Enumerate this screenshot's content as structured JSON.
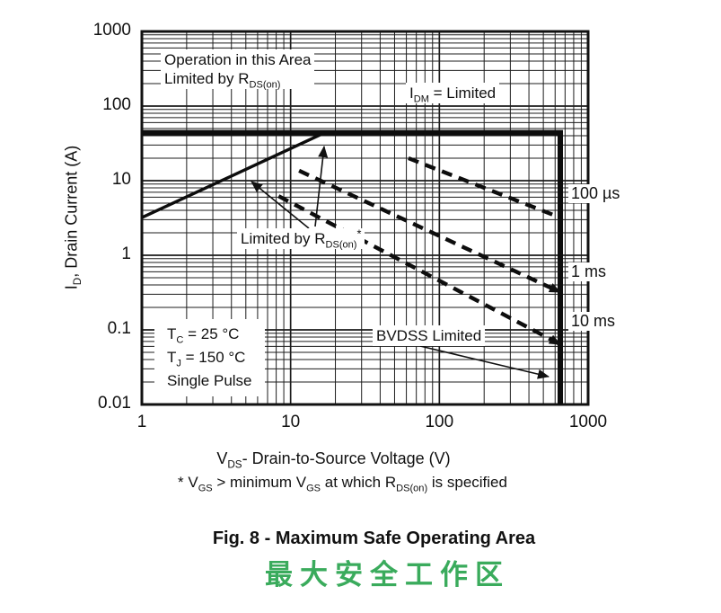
{
  "figure": {
    "caption_en": "Fig. 8 - Maximum Safe Operating Area",
    "caption_zh": "最大安全工作区",
    "caption_zh_color": "#3AAB5C",
    "footnote": {
      "pre": "* V",
      "sub1": "GS",
      "mid1": " > minimum V",
      "sub2": "GS",
      "mid2": " at which R",
      "sub3": "DS(on)",
      "end": " is specified"
    }
  },
  "chart_data": {
    "type": "line",
    "xscale": "log",
    "yscale": "log",
    "grid": true,
    "xlim": [
      1,
      1000
    ],
    "ylim": [
      0.01,
      1000
    ],
    "x_ticks": [
      "1",
      "10",
      "100",
      "1000"
    ],
    "y_ticks": [
      "1000",
      "100",
      "10",
      "1",
      "0.1",
      "0.01"
    ],
    "xlabel": {
      "pre": "V",
      "sub": "DS",
      "post": "- Drain-to-Source Voltage (V)"
    },
    "ylabel": {
      "pre": "I",
      "sub": "D",
      "post": ", Drain Current (A)"
    },
    "series": [
      {
        "name": "idm-limit",
        "style": "solid-thick",
        "points": [
          [
            1,
            44
          ],
          [
            650,
            44
          ],
          [
            650,
            0.01
          ]
        ]
      },
      {
        "name": "rdson-limit",
        "style": "solid",
        "points": [
          [
            1,
            3.2
          ],
          [
            17,
            44
          ]
        ]
      },
      {
        "name": "t-100us",
        "style": "dashed",
        "label": "100 µs",
        "arrow": false,
        "points": [
          [
            62,
            20
          ],
          [
            650,
            3.2
          ]
        ]
      },
      {
        "name": "t-1ms",
        "style": "dashed",
        "label": "1 ms",
        "arrow": true,
        "points": [
          [
            11.4,
            13.6
          ],
          [
            650,
            0.32
          ]
        ]
      },
      {
        "name": "t-10ms",
        "style": "dashed",
        "label": "10 ms",
        "arrow": true,
        "points": [
          [
            8.3,
            6.2
          ],
          [
            650,
            0.064
          ]
        ]
      }
    ],
    "annotations": {
      "op_area": {
        "line1": "Operation in this Area",
        "line2_pre": "Limited by R",
        "line2_sub": "DS(on)"
      },
      "idm": {
        "pre": "I",
        "sub": "DM",
        "post": " = Limited"
      },
      "limited_by": {
        "pre": "Limited by R",
        "sub": "DS(on)",
        "sup": "*"
      },
      "bvdss": {
        "text": "BVDSS Limited"
      },
      "conditions": [
        {
          "pre": "T",
          "sub": "C",
          "post": " = 25 °C"
        },
        {
          "pre": "T",
          "sub": "J",
          "post": " = 150 °C"
        },
        {
          "pre": "Single Pulse",
          "sub": "",
          "post": ""
        }
      ]
    }
  }
}
